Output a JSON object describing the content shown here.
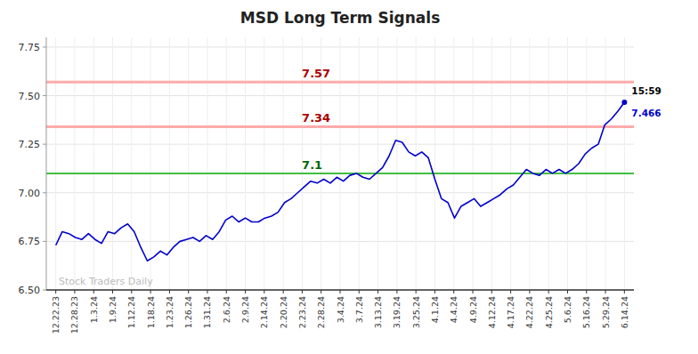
{
  "chart_data": {
    "type": "line",
    "title": "MSD Long Term Signals",
    "color": "#0000cc",
    "values": [
      6.73,
      6.8,
      6.79,
      6.77,
      6.76,
      6.79,
      6.76,
      6.74,
      6.8,
      6.79,
      6.82,
      6.84,
      6.8,
      6.72,
      6.65,
      6.67,
      6.7,
      6.68,
      6.72,
      6.75,
      6.76,
      6.77,
      6.75,
      6.78,
      6.76,
      6.8,
      6.86,
      6.88,
      6.85,
      6.87,
      6.85,
      6.85,
      6.87,
      6.88,
      6.9,
      6.95,
      6.97,
      7.0,
      7.03,
      7.06,
      7.05,
      7.07,
      7.05,
      7.08,
      7.06,
      7.09,
      7.1,
      7.08,
      7.07,
      7.1,
      7.13,
      7.19,
      7.27,
      7.26,
      7.21,
      7.19,
      7.21,
      7.18,
      7.07,
      6.97,
      6.95,
      6.87,
      6.93,
      6.95,
      6.97,
      6.93,
      6.95,
      6.97,
      6.99,
      7.02,
      7.04,
      7.08,
      7.12,
      7.1,
      7.09,
      7.12,
      7.1,
      7.12,
      7.1,
      7.12,
      7.15,
      7.2,
      7.23,
      7.25,
      7.35,
      7.38,
      7.42,
      7.466
    ],
    "xlim": [
      -0.5,
      30.5
    ],
    "xticks": [
      {
        "value": 0,
        "label": "12.22.23"
      },
      {
        "value": 1,
        "label": "12.28.23"
      },
      {
        "value": 2,
        "label": "1.3.24"
      },
      {
        "value": 3,
        "label": "1.9.24"
      },
      {
        "value": 4,
        "label": "1.12.24"
      },
      {
        "value": 5,
        "label": "1.18.24"
      },
      {
        "value": 6,
        "label": "1.23.24"
      },
      {
        "value": 7,
        "label": "1.26.24"
      },
      {
        "value": 8,
        "label": "1.31.24"
      },
      {
        "value": 9,
        "label": "2.6.24"
      },
      {
        "value": 10,
        "label": "2.9.24"
      },
      {
        "value": 11,
        "label": "2.14.24"
      },
      {
        "value": 12,
        "label": "2.20.24"
      },
      {
        "value": 13,
        "label": "2.23.24"
      },
      {
        "value": 14,
        "label": "2.28.24"
      },
      {
        "value": 15,
        "label": "3.4.24"
      },
      {
        "value": 16,
        "label": "3.7.24"
      },
      {
        "value": 17,
        "label": "3.13.24"
      },
      {
        "value": 18,
        "label": "3.19.24"
      },
      {
        "value": 19,
        "label": "3.25.24"
      },
      {
        "value": 20,
        "label": "4.1.24"
      },
      {
        "value": 21,
        "label": "4.4.24"
      },
      {
        "value": 22,
        "label": "4.9.24"
      },
      {
        "value": 23,
        "label": "4.12.24"
      },
      {
        "value": 24,
        "label": "4.17.24"
      },
      {
        "value": 25,
        "label": "4.22.24"
      },
      {
        "value": 26,
        "label": "4.25.24"
      },
      {
        "value": 27,
        "label": "5.6.24"
      },
      {
        "value": 28,
        "label": "5.16.24"
      },
      {
        "value": 29,
        "label": "5.29.24"
      },
      {
        "value": 30,
        "label": "6.14.24"
      }
    ],
    "ylim": [
      6.5,
      7.8
    ],
    "yticks": [
      {
        "value": 6.5,
        "label": "6.50"
      },
      6.75,
      {
        "value": 7.0,
        "label": "7.00"
      },
      7.25,
      {
        "value": 7.5,
        "label": "7.50"
      },
      7.75
    ],
    "grid": true,
    "reference_lines": [
      {
        "value": 7.34,
        "color": "#ffaaaa",
        "label": "7.34",
        "label_color": "#aa0000"
      },
      {
        "value": 7.57,
        "color": "#ffaaaa",
        "label": "7.57",
        "label_color": "#aa0000"
      },
      {
        "value": 7.1,
        "color": "#00aa00",
        "label": "7.1",
        "label_color": "#006600"
      }
    ],
    "annotations": [
      {
        "text": "15:59",
        "color": "#000000"
      },
      {
        "text": "Stock Traders Daily",
        "color": "#bbbbbb"
      }
    ]
  }
}
